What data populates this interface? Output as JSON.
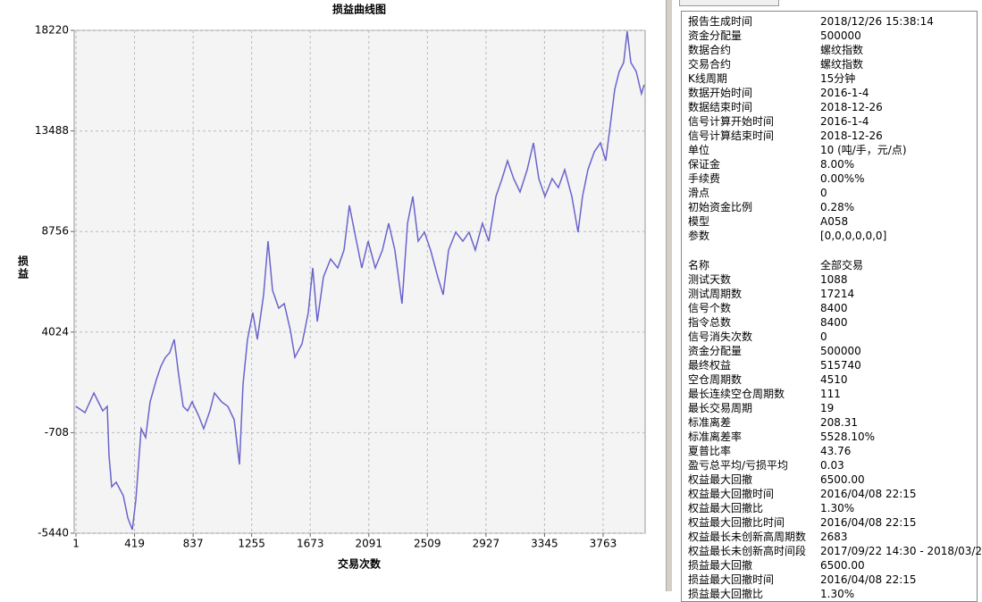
{
  "chart_data": {
    "type": "line",
    "title": "损益曲线图",
    "y_label": "损益",
    "x_label": "交易次数",
    "color": "#6a64cc",
    "grid": true,
    "xlim": [
      -12,
      4063
    ],
    "ylim": [
      -5440,
      18220
    ],
    "xticks": [
      1,
      419,
      837,
      1255,
      1673,
      2091,
      2509,
      2927,
      3345,
      3763
    ],
    "yticks": [
      -5440,
      -708,
      4024,
      8756,
      13488,
      18220
    ],
    "x": [
      1,
      65,
      129,
      192,
      224,
      237,
      256,
      288,
      339,
      371,
      403,
      428,
      466,
      498,
      530,
      575,
      607,
      639,
      670,
      702,
      734,
      766,
      798,
      830,
      875,
      913,
      957,
      989,
      1040,
      1085,
      1130,
      1168,
      1193,
      1225,
      1263,
      1295,
      1340,
      1372,
      1404,
      1448,
      1487,
      1531,
      1563,
      1614,
      1659,
      1691,
      1723,
      1767,
      1818,
      1869,
      1914,
      1952,
      1990,
      2041,
      2086,
      2137,
      2188,
      2233,
      2277,
      2328,
      2367,
      2405,
      2443,
      2488,
      2532,
      2583,
      2622,
      2660,
      2711,
      2762,
      2807,
      2851,
      2902,
      2947,
      2998,
      3042,
      3081,
      3125,
      3170,
      3221,
      3266,
      3304,
      3348,
      3399,
      3444,
      3489,
      3540,
      3584,
      3616,
      3655,
      3700,
      3744,
      3782,
      3814,
      3846,
      3878,
      3910,
      3935,
      3961,
      3999,
      4037,
      4056
    ],
    "values": [
      529,
      235,
      1160,
      319,
      529,
      -1782,
      -3253,
      -3042,
      -3673,
      -4724,
      -5270,
      -3883,
      -521,
      -941,
      740,
      1790,
      2420,
      2840,
      3050,
      3681,
      1999,
      529,
      319,
      740,
      109,
      -521,
      319,
      1160,
      740,
      529,
      -101,
      -2202,
      1580,
      3681,
      4941,
      3681,
      5782,
      8303,
      5992,
      5152,
      5362,
      4101,
      2840,
      3471,
      4941,
      7043,
      4521,
      6623,
      7463,
      7043,
      7883,
      9984,
      8723,
      7043,
      8303,
      7043,
      7883,
      9144,
      7883,
      5362,
      9144,
      10404,
      8303,
      8723,
      7883,
      6623,
      5782,
      7883,
      8723,
      8303,
      8723,
      7883,
      9144,
      8303,
      10404,
      11244,
      12085,
      11244,
      10614,
      11664,
      12925,
      11244,
      10404,
      11244,
      10824,
      11664,
      10404,
      8723,
      10404,
      11664,
      12505,
      12925,
      12085,
      13766,
      15447,
      16287,
      16707,
      18178,
      16707,
      16287,
      15236,
      15657
    ]
  },
  "panel": {
    "settings": [
      [
        "报告生成时间",
        "2018/12/26 15:38:14"
      ],
      [
        "资金分配量",
        "500000"
      ],
      [
        "数据合约",
        "螺纹指数"
      ],
      [
        "交易合约",
        "螺纹指数"
      ],
      [
        "K线周期",
        "15分钟"
      ],
      [
        "数据开始时间",
        "2016-1-4"
      ],
      [
        "数据结束时间",
        "2018-12-26"
      ],
      [
        "信号计算开始时间",
        "2016-1-4"
      ],
      [
        "信号计算结束时间",
        "2018-12-26"
      ],
      [
        "单位",
        "10 (吨/手，元/点)"
      ],
      [
        "保证金",
        "8.00%"
      ],
      [
        "手续费",
        "0.00%%"
      ],
      [
        "滑点",
        "0"
      ],
      [
        "初始资金比例",
        "0.28%"
      ],
      [
        "模型",
        "A058"
      ],
      [
        "参数",
        "[0,0,0,0,0,0]"
      ]
    ],
    "results": [
      [
        "名称",
        "全部交易"
      ],
      [
        "测试天数",
        "1088"
      ],
      [
        "测试周期数",
        "17214"
      ],
      [
        "信号个数",
        "8400"
      ],
      [
        "指令总数",
        "8400"
      ],
      [
        "信号消失次数",
        "0"
      ],
      [
        "资金分配量",
        "500000"
      ],
      [
        "最终权益",
        "515740"
      ],
      [
        "空仓周期数",
        "4510"
      ],
      [
        "最长连续空仓周期数",
        "111"
      ],
      [
        "最长交易周期",
        "19"
      ],
      [
        "标准离差",
        "208.31"
      ],
      [
        "标准离差率",
        "5528.10%"
      ],
      [
        "夏普比率",
        "43.76"
      ],
      [
        "盈亏总平均/亏损平均",
        "0.03"
      ],
      [
        "权益最大回撤",
        "6500.00"
      ],
      [
        "权益最大回撤时间",
        "2016/04/08 22:15"
      ],
      [
        "权益最大回撤比",
        "1.30%"
      ],
      [
        "权益最大回撤比时间",
        "2016/04/08 22:15"
      ],
      [
        "权益最长未创新高周期数",
        "2683"
      ],
      [
        "权益最长未创新高时间段",
        "2017/09/22 14:30 - 2018/03/2"
      ],
      [
        "损益最大回撤",
        "6500.00"
      ],
      [
        "损益最大回撤时间",
        "2016/04/08 22:15"
      ],
      [
        "损益最大回撤比",
        "1.30%"
      ]
    ]
  }
}
